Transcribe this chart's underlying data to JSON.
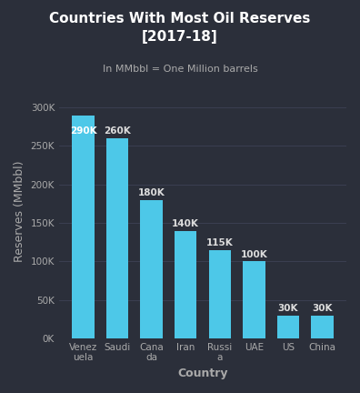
{
  "title": "Countries With Most Oil Reserves\n[2017-18]",
  "subtitle": "In MMbbl = One Million barrels",
  "xlabel": "Country",
  "ylabel": "Reserves (MMbbl)",
  "categories": [
    "Venez\nuela",
    "Saudi",
    "Cana\nda",
    "Iran",
    "Russi\na",
    "UAE",
    "US",
    "China"
  ],
  "values": [
    290000,
    260000,
    180000,
    140000,
    115000,
    100000,
    30000,
    30000
  ],
  "bar_labels": [
    "290K",
    "260K",
    "180K",
    "140K",
    "115K",
    "100K",
    "30K",
    "30K"
  ],
  "bar_color": "#4DC8E8",
  "background_color": "#2b2f3a",
  "text_color": "#aaaaaa",
  "label_color_inside": "#ffffff",
  "label_color_outside": "#dddddd",
  "yticks": [
    0,
    50000,
    100000,
    150000,
    200000,
    250000,
    300000
  ],
  "ytick_labels": [
    "0K",
    "50K",
    "100K",
    "150K",
    "200K",
    "250K",
    "300K"
  ],
  "ylim": [
    0,
    330000
  ],
  "grid_color": "#3d4255",
  "title_fontsize": 11,
  "subtitle_fontsize": 8,
  "axis_label_fontsize": 9,
  "tick_fontsize": 7.5,
  "bar_label_fontsize": 7.5
}
